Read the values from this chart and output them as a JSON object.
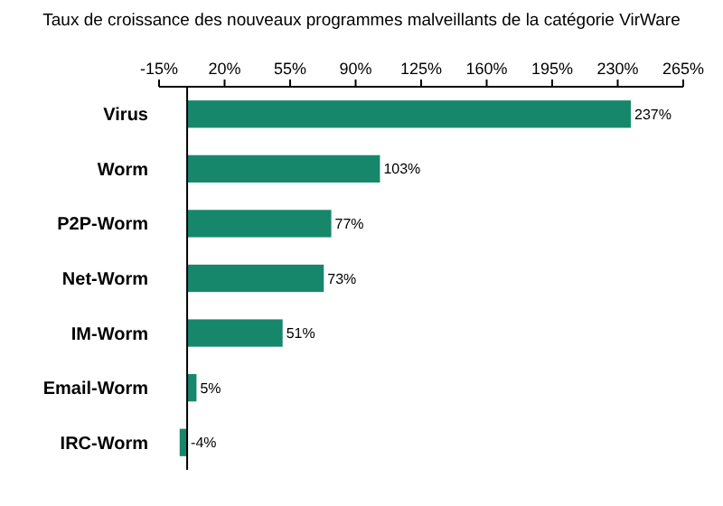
{
  "chart_data": {
    "type": "bar",
    "orientation": "horizontal",
    "title": "Taux de croissance des nouveaux programmes malveillants de la catégorie VirWare",
    "categories": [
      "Virus",
      "Worm",
      "P2P-Worm",
      "Net-Worm",
      "IM-Worm",
      "Email-Worm",
      "IRC-Worm"
    ],
    "values": [
      237,
      103,
      77,
      73,
      51,
      5,
      -4
    ],
    "value_labels": [
      "237%",
      "103%",
      "77%",
      "73%",
      "51%",
      "5%",
      "-4%"
    ],
    "color": "#17876b",
    "xlim": [
      -15,
      265
    ],
    "xticks": [
      {
        "value": -15,
        "label": "-15%"
      },
      {
        "value": 20,
        "label": "20%"
      },
      {
        "value": 55,
        "label": "55%"
      },
      {
        "value": 90,
        "label": "90%"
      },
      {
        "value": 125,
        "label": "125%"
      },
      {
        "value": 160,
        "label": "160%"
      },
      {
        "value": 195,
        "label": "195%"
      },
      {
        "value": 230,
        "label": "230%"
      },
      {
        "value": 265,
        "label": "265%"
      }
    ],
    "grid": false
  }
}
